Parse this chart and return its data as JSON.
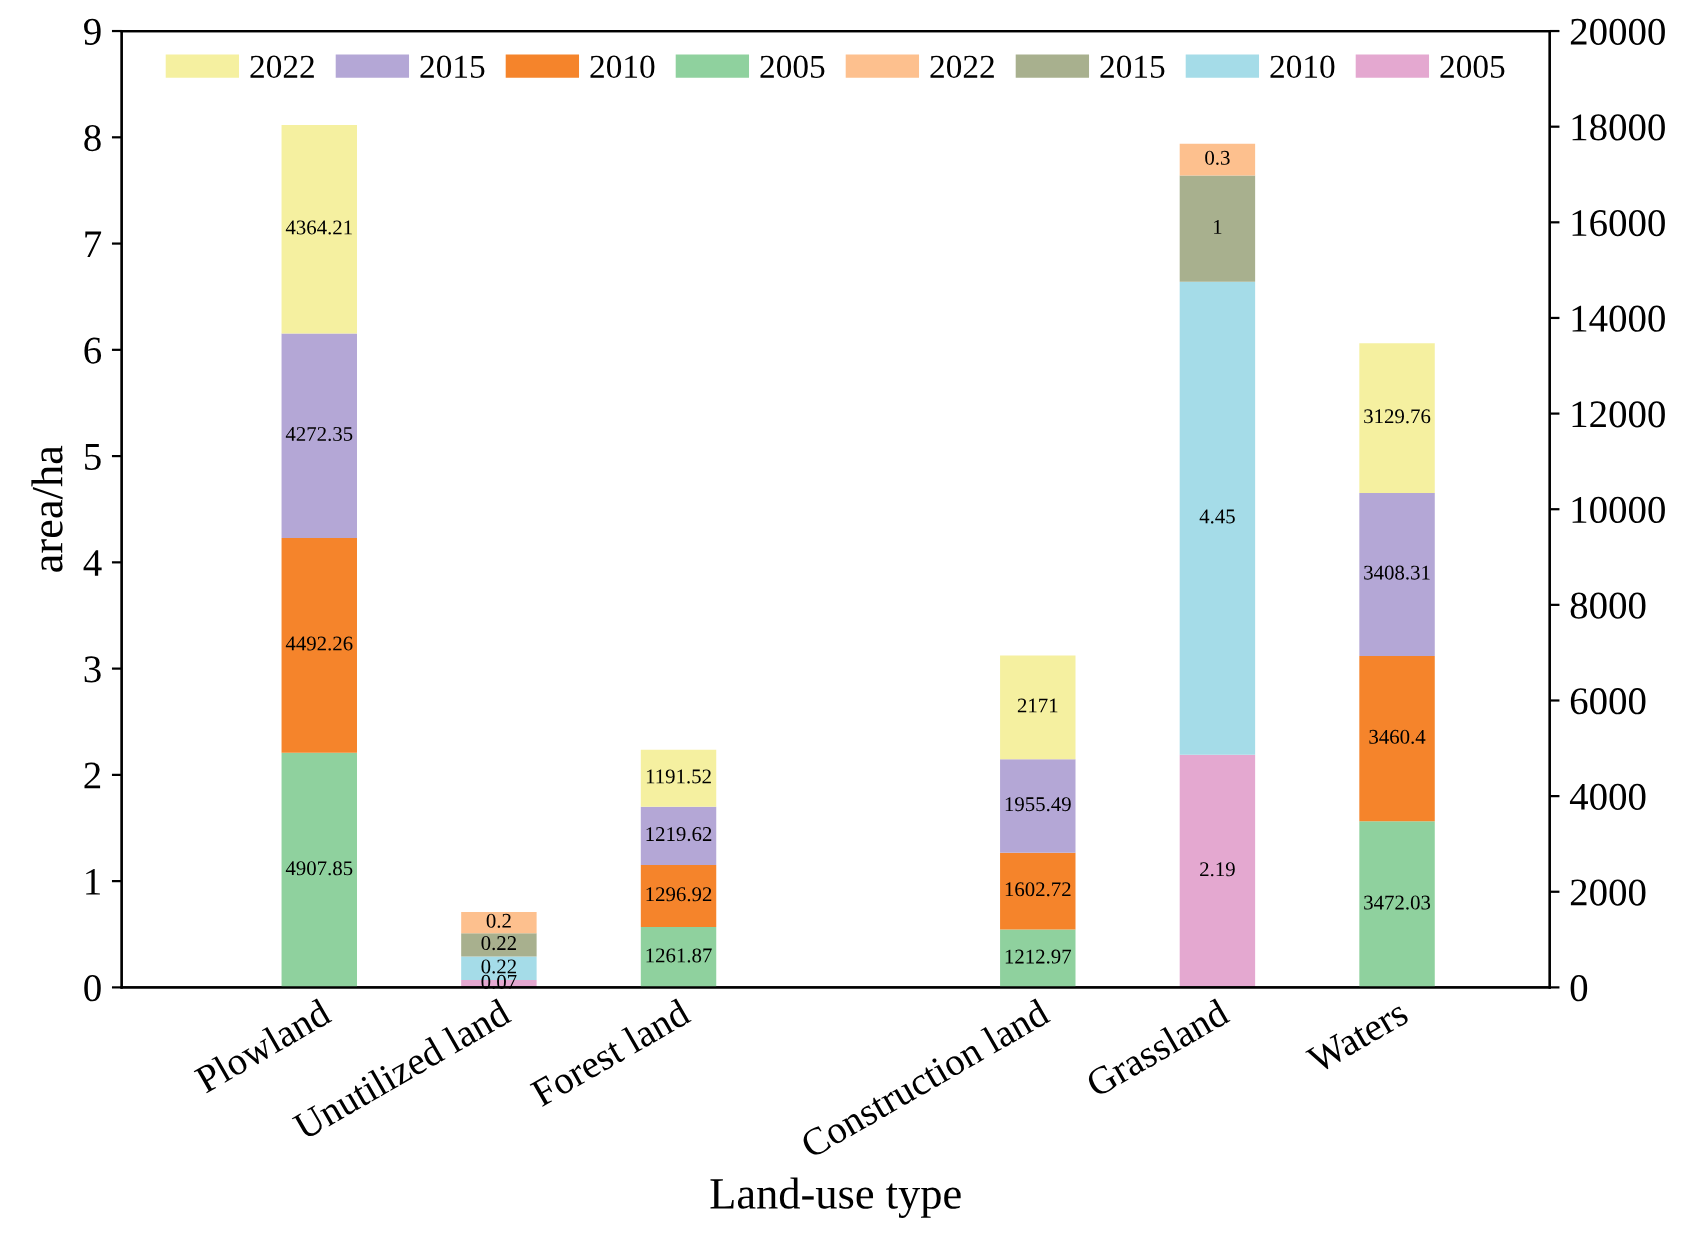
{
  "chart_data": {
    "type": "bar",
    "stacked": true,
    "xlabel": "Land-use type",
    "ylabel": "area/ha",
    "categories": [
      "Plowland",
      "Unutilized land",
      "Forest land",
      null,
      "Construction land",
      "Grassland",
      "Waters"
    ],
    "series": [
      {
        "name": "2005",
        "color": "#8fd19e",
        "axis": "y2",
        "values": [
          4907.85,
          null,
          1261.87,
          null,
          1212.97,
          null,
          3472.03
        ]
      },
      {
        "name": "2010",
        "color": "#f5842b",
        "axis": "y2",
        "values": [
          4492.26,
          null,
          1296.92,
          null,
          1602.72,
          null,
          3460.4
        ]
      },
      {
        "name": "2015",
        "color": "#b4a7d6",
        "axis": "y2",
        "values": [
          4272.35,
          null,
          1219.62,
          null,
          1955.49,
          null,
          3408.31
        ]
      },
      {
        "name": "2022",
        "color": "#f5f0a0",
        "axis": "y2",
        "values": [
          4364.21,
          null,
          1191.52,
          null,
          2171,
          null,
          3129.76
        ]
      },
      {
        "name": "2005",
        "color": "#e4a8d0",
        "axis": "y",
        "values": [
          null,
          0.07,
          null,
          null,
          null,
          2.19,
          null
        ]
      },
      {
        "name": "2010",
        "color": "#a5dce8",
        "axis": "y",
        "values": [
          null,
          0.22,
          null,
          null,
          null,
          4.45,
          null
        ]
      },
      {
        "name": "2015",
        "color": "#a8b08e",
        "axis": "y",
        "values": [
          null,
          0.22,
          null,
          null,
          null,
          1,
          null
        ]
      },
      {
        "name": "2022",
        "color": "#fdc08e",
        "axis": "y",
        "values": [
          null,
          0.2,
          null,
          null,
          null,
          0.3,
          null
        ]
      }
    ],
    "ylim": [
      0,
      9
    ],
    "yticks": [
      0,
      1,
      2,
      3,
      4,
      5,
      6,
      7,
      8,
      9
    ],
    "y2lim": [
      0,
      20000
    ],
    "y2ticks": [
      0,
      2000,
      4000,
      6000,
      8000,
      10000,
      12000,
      14000,
      16000,
      18000,
      20000
    ],
    "data_labels": true,
    "legend": "top",
    "grid": false
  }
}
